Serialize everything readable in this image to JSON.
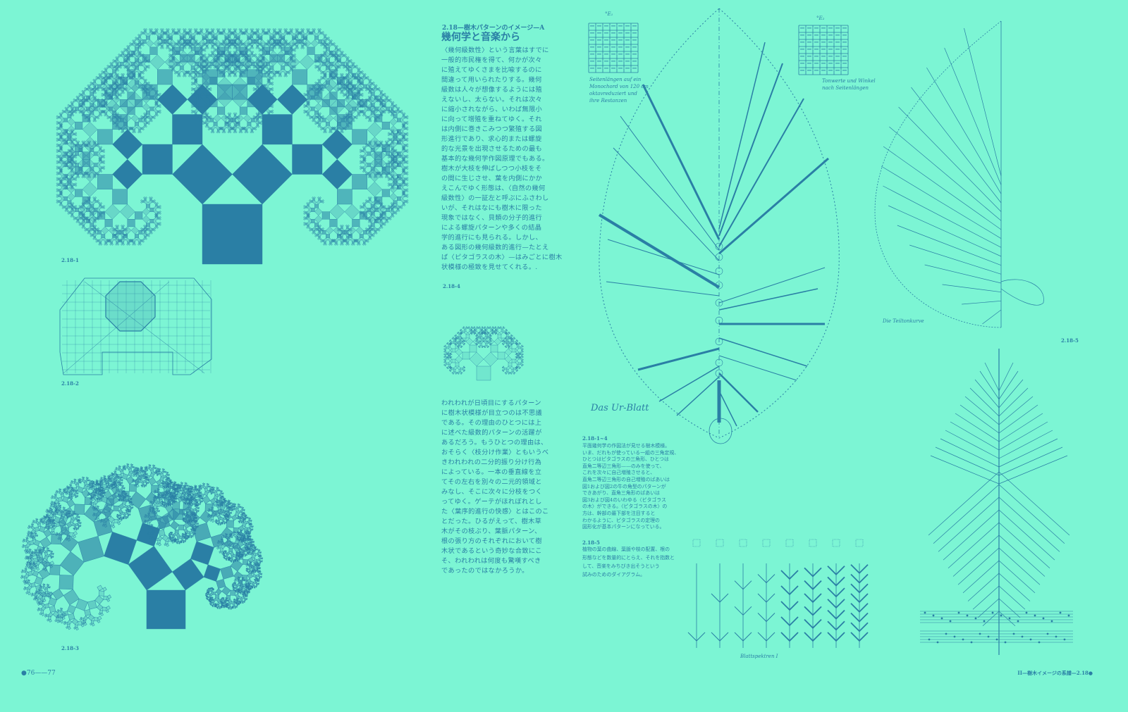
{
  "colors": {
    "background": "#7cf5d4",
    "ink": "#2a7fa5"
  },
  "section": {
    "subtitle": "2.18—樹木パターンのイメージ—A",
    "title": "幾何学と音楽から"
  },
  "body": {
    "paragraph1": [
      "〈幾何級数性〉という言葉はすでに",
      "一般的市民権を得て、何かが次々",
      "に殖えてゆくさまを比喩するのに",
      "間違って用いられたりする。幾何",
      "級数は人々が想像するようには殖",
      "えないし、太らない。それは次々",
      "に縮小されながら、いわば無限小",
      "に向って増殖を重ねてゆく。それ",
      "は内側に巻きこみつつ繁殖する図",
      "形進行であり、求心的または螺旋",
      "的な光景を出現させるための最も",
      "基本的な幾何学作図原理でもある。",
      "樹木が大枝を伸ばしつつ小枝をそ",
      "の間に生じさせ、葉を内側にかか",
      "えこんでゆく形態は、〈自然の幾何",
      "級数性〉の一証左と呼ぶにふさわし",
      "いが、それはなにも樹木に限った",
      "現象ではなく、貝類の分子的進行",
      "による螺旋パターンや多くの結晶",
      "学的進行にも見られる。しかし、",
      "ある図形の幾何級数的進行—たとえ",
      "ば〈ピタゴラスの木〉—はみごとに樹木",
      "状模様の極致を見せてくれる。."
    ],
    "paragraph2": [
      "われわれが日頃目にするパターン",
      "に樹木状模様が目立つのは不思議",
      "である。その理由のひとつには上",
      "に述べた級数的パターンの活躍が",
      "あるだろう。もうひとつの理由は、",
      "おそらく〈枝分け作業〉ともいうべ",
      "きわれわれの二分的振り分け行為",
      "によっている。一本の垂直線を立",
      "てその左右を別々の二元的領域と",
      "みなし、そこに次々に分枝をつく",
      "ってゆく。ゲーテがほれぼれとし",
      "た〈葉序的進行の快感〉とはこのこ",
      "とだった。ひるがえって、樹木草",
      "木がその枝ぶり、葉脈パターン、",
      "根の張り方のそれぞれにおいて樹",
      "木状であるという奇妙な合致にこ",
      "そ、われわれは何度も驚嘆すべき",
      "であったのではなかろうか。"
    ]
  },
  "captions": {
    "c1_4": {
      "label": "2.18-1~4",
      "lines": [
        "平面幾何学の作図法が見せる樹木模様。",
        "いま、だれもが使っている一組の三角定規、",
        "ひとつはピタゴラスの三角形、ひとつは",
        "直角二等辺三角形——のみを使って、",
        "これを次々に自己増殖させると、",
        "直角二等辺三角形の自己増殖のばあいは",
        "図1および図2の牛の角型のパターンが",
        "できあがり、直角三角形のばあいは",
        "図3および図4のいわゆる〈ピタゴラス",
        "の木〉ができる。〈ピタゴラスの木〉の",
        "方は、幹部の最下部を注目すると",
        "わかるように、ピタゴラスの定理の",
        "図形化が基本パターンになっている。"
      ]
    },
    "c5": {
      "label": "2.18-5",
      "lines": [
        "植物の葉の曲線、葉脈や枝の配置、根の",
        "形態などを数量的にとらえ、それを指数と",
        "して、音楽をみちびき出そうという",
        "試みのためのダイアグラム。"
      ]
    }
  },
  "figure_labels": {
    "fig1": "2.18-1",
    "fig2": "2.18-2",
    "fig3": "2.18-3",
    "fig4": "2.18-4",
    "fig5": "2.18-5"
  },
  "diagram_text": {
    "table_left_title": "°E₁",
    "table_left_caption": [
      "Seitenlängen auf ein",
      "Monochord von 120 cm",
      "oktavreduziert und",
      "ihre Restanzen"
    ],
    "table_right_title": "°E₂",
    "table_right_caption": [
      "Tonwerte und Winkel",
      "nach Seitenlängen"
    ],
    "leaf_title": "Das Ur-Blatt",
    "fan_title": "Die Teiltonkurve",
    "spectra_title": "Blattspektren I"
  },
  "folio": {
    "left": "●76——77",
    "right": "II—樹木イメージの系譜—2.18●"
  }
}
